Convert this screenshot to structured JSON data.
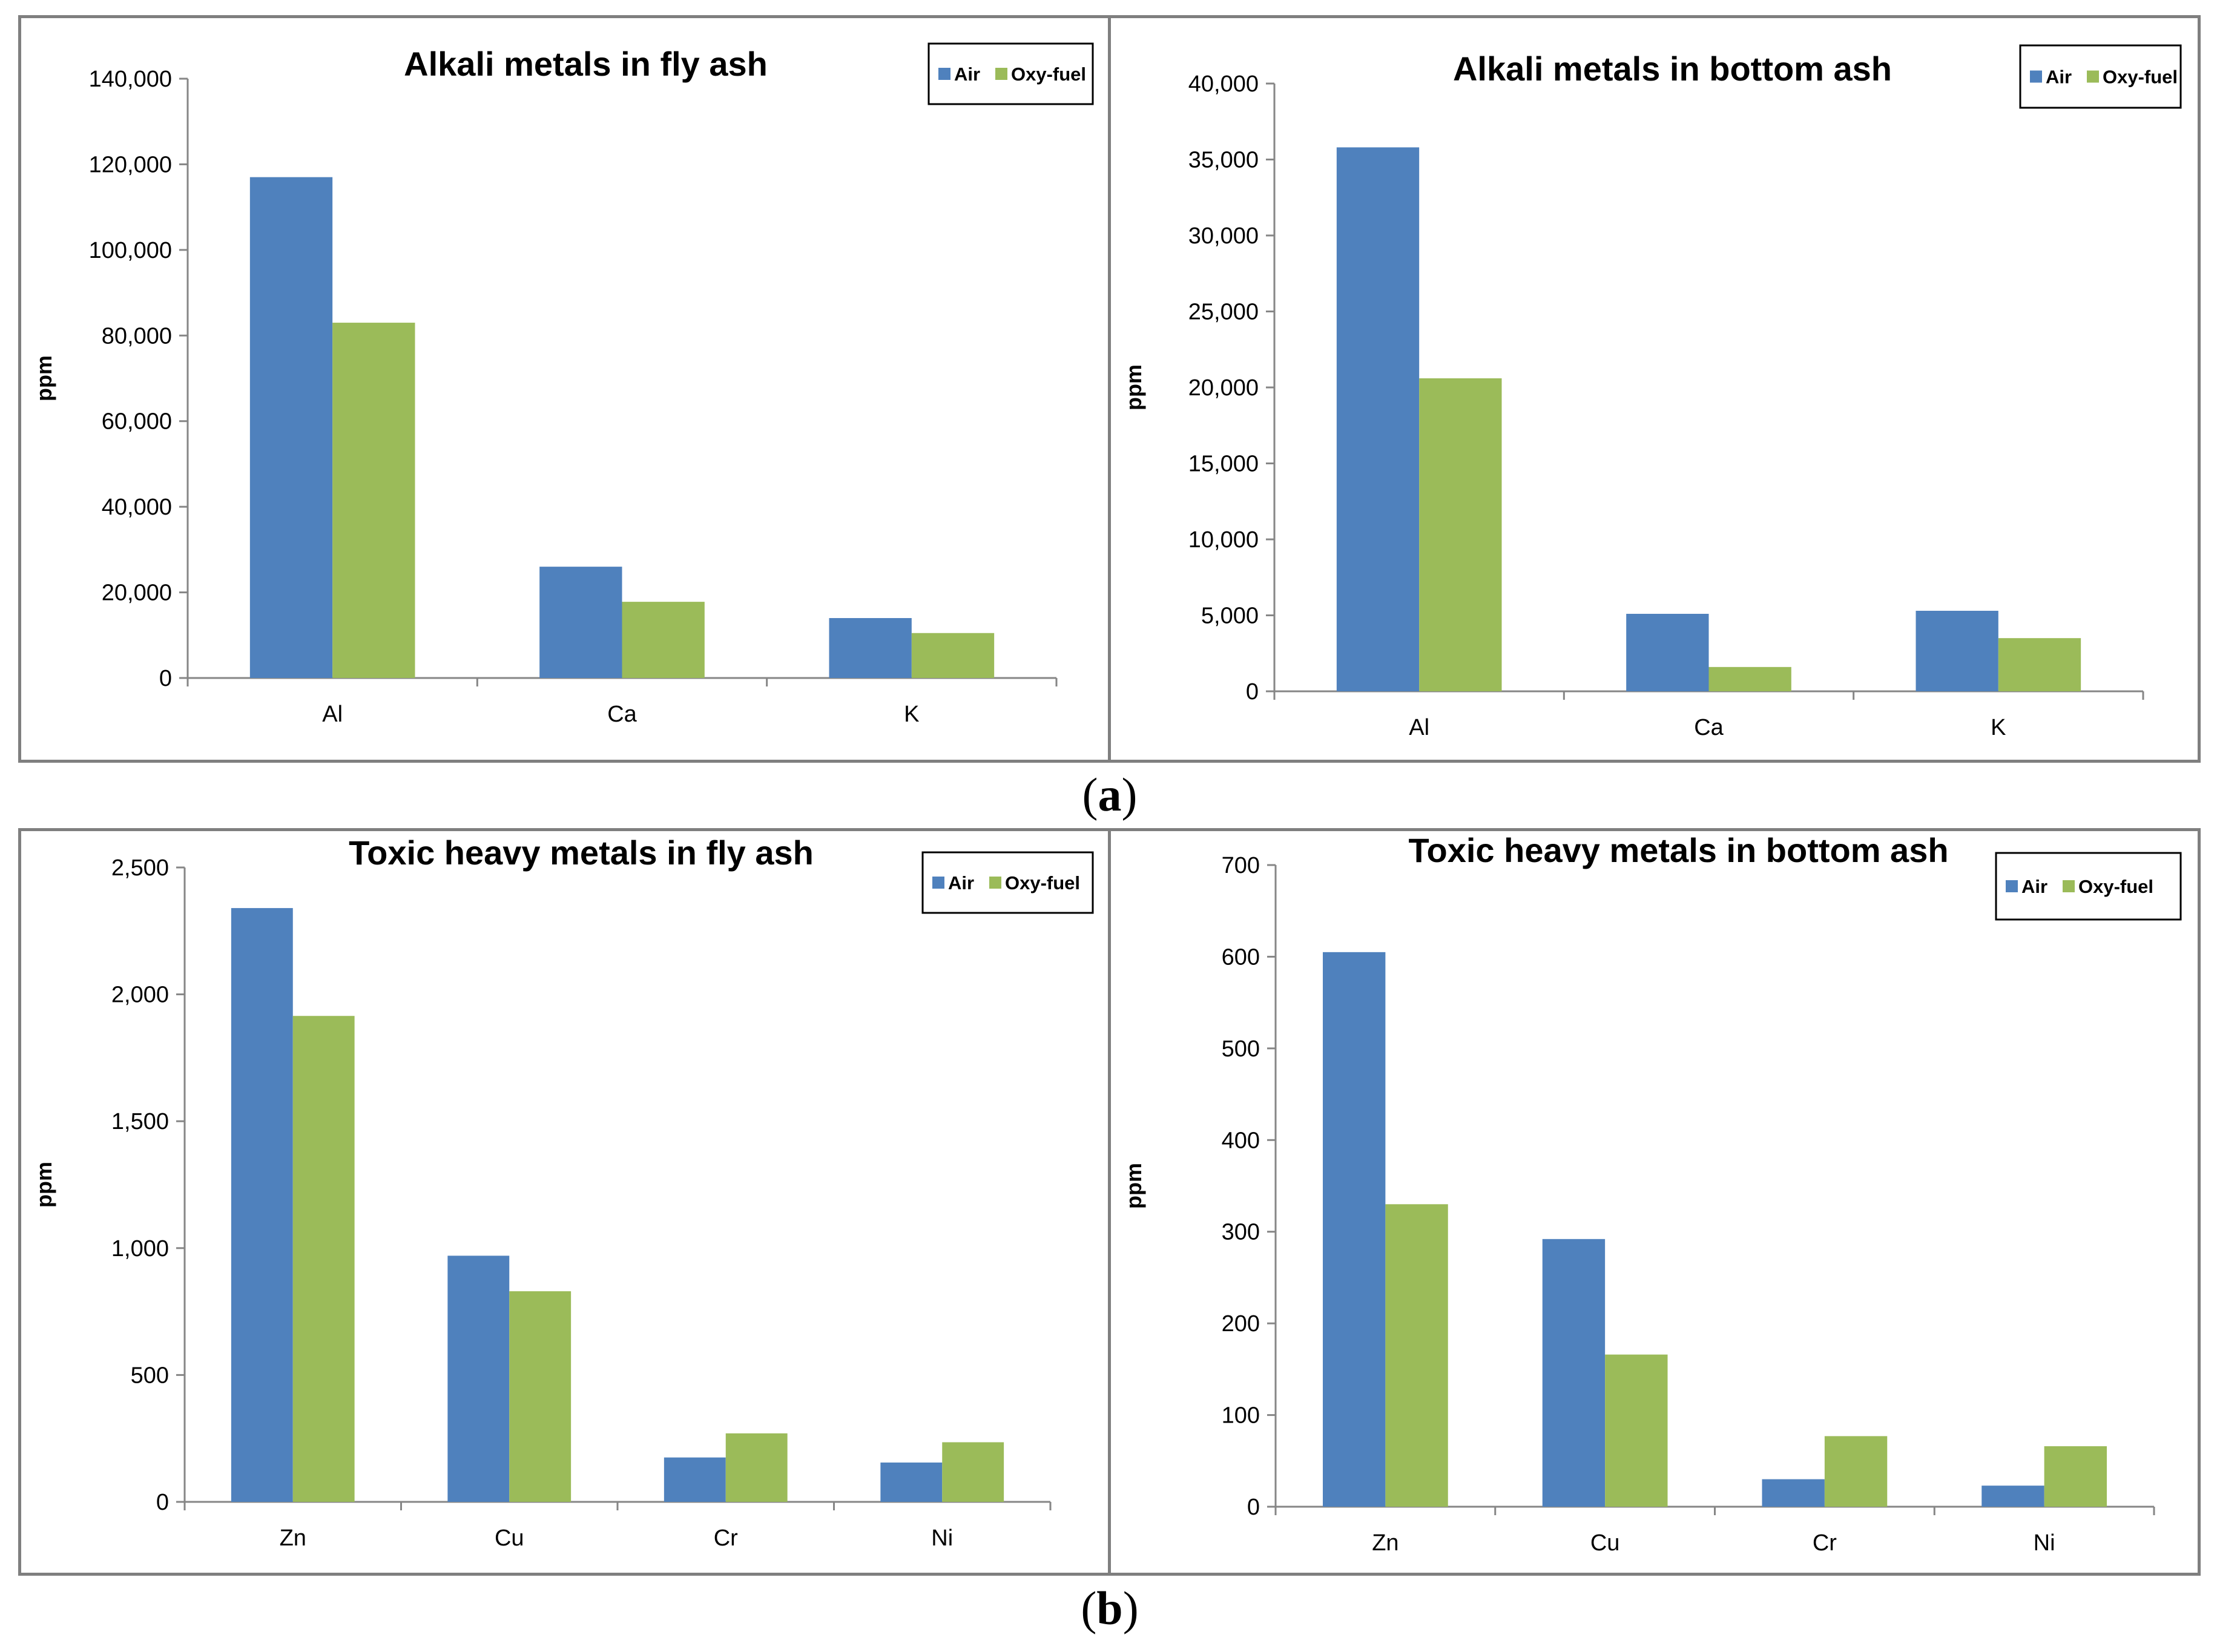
{
  "colors": {
    "air": "#4f81bd",
    "oxy": "#9bbb59",
    "axis": "#868686",
    "panel_border": "#7f7f7f",
    "text": "#000000"
  },
  "captions": {
    "a": "a",
    "b": "b"
  },
  "chart_data": [
    {
      "type": "bar",
      "title": "Alkali metals in fly ash",
      "xlabel": "",
      "ylabel": "ppm",
      "categories": [
        "Al",
        "Ca",
        "K"
      ],
      "series": [
        {
          "name": "Air",
          "values": [
            117000,
            26000,
            14000
          ]
        },
        {
          "name": "Oxy-fuel",
          "values": [
            83000,
            17800,
            10500
          ]
        }
      ],
      "ylim": [
        0,
        140000
      ],
      "yticks": [
        0,
        20000,
        40000,
        60000,
        80000,
        100000,
        120000,
        140000
      ],
      "ytick_labels": [
        "0",
        "20,000",
        "40,000",
        "60,000",
        "80,000",
        "100,000",
        "120,000",
        "140,000"
      ],
      "legend": "top-right"
    },
    {
      "type": "bar",
      "title": "Alkali metals in bottom ash",
      "xlabel": "",
      "ylabel": "ppm",
      "categories": [
        "Al",
        "Ca",
        "K"
      ],
      "series": [
        {
          "name": "Air",
          "values": [
            35800,
            5100,
            5300
          ]
        },
        {
          "name": "Oxy-fuel",
          "values": [
            20600,
            1600,
            3500
          ]
        }
      ],
      "ylim": [
        0,
        40000
      ],
      "yticks": [
        0,
        5000,
        10000,
        15000,
        20000,
        25000,
        30000,
        35000,
        40000
      ],
      "ytick_labels": [
        "0",
        "5,000",
        "10,000",
        "15,000",
        "20,000",
        "25,000",
        "30,000",
        "35,000",
        "40,000"
      ],
      "legend": "top-right"
    },
    {
      "type": "bar",
      "title": "Toxic heavy metals in fly ash",
      "xlabel": "",
      "ylabel": "ppm",
      "categories": [
        "Zn",
        "Cu",
        "Cr",
        "Ni"
      ],
      "series": [
        {
          "name": "Air",
          "values": [
            2340,
            970,
            175,
            155
          ]
        },
        {
          "name": "Oxy-fuel",
          "values": [
            1915,
            830,
            270,
            235
          ]
        }
      ],
      "ylim": [
        0,
        2500
      ],
      "yticks": [
        0,
        500,
        1000,
        1500,
        2000,
        2500
      ],
      "ytick_labels": [
        "0",
        "500",
        "1,000",
        "1,500",
        "2,000",
        "2,500"
      ],
      "legend": "top-right"
    },
    {
      "type": "bar",
      "title": "Toxic heavy metals in bottom ash",
      "xlabel": "",
      "ylabel": "ppm",
      "categories": [
        "Zn",
        "Cu",
        "Cr",
        "Ni"
      ],
      "series": [
        {
          "name": "Air",
          "values": [
            605,
            292,
            30,
            23
          ]
        },
        {
          "name": "Oxy-fuel",
          "values": [
            330,
            166,
            77,
            66
          ]
        }
      ],
      "ylim": [
        0,
        700
      ],
      "yticks": [
        0,
        100,
        200,
        300,
        400,
        500,
        600,
        700
      ],
      "ytick_labels": [
        "0",
        "100",
        "200",
        "300",
        "400",
        "500",
        "600",
        "700"
      ],
      "legend": "top-right"
    }
  ]
}
